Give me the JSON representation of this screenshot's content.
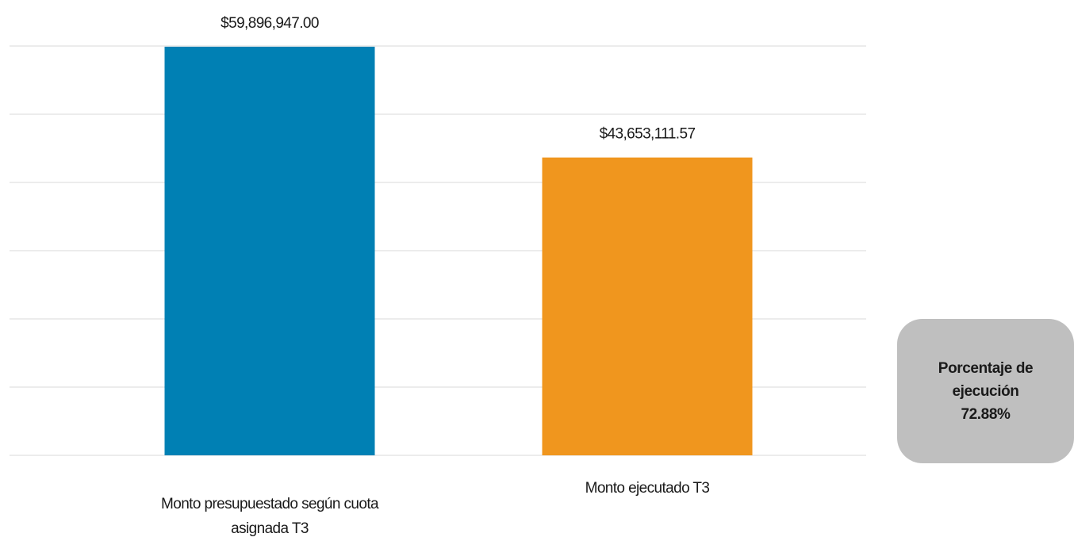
{
  "chart_data": {
    "type": "bar",
    "categories": [
      "Monto presupuestado según cuota asignada T3",
      "Monto ejecutado T3"
    ],
    "values": [
      59896947.0,
      43653111.57
    ],
    "value_labels": [
      "$59,896,947.00",
      "$43,653,111.57"
    ],
    "colors": [
      "#0080b4",
      "#f0961e"
    ],
    "ylim": [
      0,
      60000000
    ],
    "yticks": [
      0,
      10000000,
      20000000,
      30000000,
      40000000,
      50000000,
      60000000
    ],
    "grid": true,
    "annotation": [
      "Porcentaje de ejecución",
      "72.88%"
    ]
  }
}
